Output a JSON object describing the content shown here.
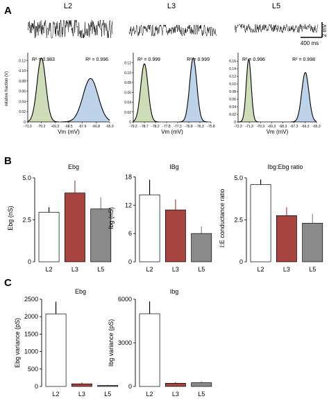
{
  "panel_labels": [
    "A",
    "B",
    "C"
  ],
  "colors": {
    "L2": "#ffffff",
    "L3": "#a84440",
    "L5": "#8a8a8a",
    "exc_fill": "#cfdcb8",
    "inh_fill": "#bcd3ea",
    "curve": "#000000"
  },
  "panel_a": {
    "scale_bar": {
      "voltage": "2 mV",
      "time": "400 ms"
    },
    "ylabel": "relative fraction (V)",
    "xlabel": "Vm (mV)",
    "histograms": [
      {
        "layer": "L2",
        "r2_left": "R² = 0.983",
        "r2_right": "R² = 0.996",
        "xticks": [
          "-71.0",
          "-70.2",
          "-69.3",
          "-68.5",
          "-67.6",
          "-66.8",
          "-65.9"
        ],
        "yticks": [
          "0",
          "0.02",
          "0.04",
          "0.06",
          "0.08",
          "0.10",
          "0.12"
        ],
        "ymax": 0.13,
        "peaks": [
          {
            "x": 1.0,
            "h": 0.125,
            "w": 0.32
          },
          {
            "x": 4.6,
            "h": 0.085,
            "w": 0.55
          }
        ]
      },
      {
        "layer": "L3",
        "r2_left": "R² = 0.999",
        "r2_right": "R² = 0.999",
        "xticks": [
          "-79.2",
          "-78.7",
          "-78.2",
          "-77.8",
          "-77.3",
          "-76.8",
          "-76.3",
          "-75.8"
        ],
        "yticks": [
          "0",
          "0.02",
          "0.04",
          "0.06",
          "0.08",
          "0.10",
          "0.12"
        ],
        "ymax": 0.135,
        "peaks": [
          {
            "x": 1.0,
            "h": 0.118,
            "w": 0.33
          },
          {
            "x": 5.4,
            "h": 0.13,
            "w": 0.32
          }
        ]
      },
      {
        "layer": "L5",
        "r2_left": "R² = 0.996",
        "r2_right": "R² = 0.998",
        "xticks": [
          "-72.3",
          "-71.3",
          "-70.3",
          "-69.3",
          "-68.3",
          "-67.3",
          "-66.3",
          "-65.3"
        ],
        "yticks": [
          "0",
          "0.02",
          "0.04",
          "0.06",
          "0.08",
          "0.10",
          "0.12",
          "0.14",
          "0.16"
        ],
        "ymax": 0.175,
        "peaks": [
          {
            "x": 0.95,
            "h": 0.165,
            "w": 0.22
          },
          {
            "x": 6.0,
            "h": 0.13,
            "w": 0.32
          }
        ]
      }
    ]
  },
  "chart_data": [
    {
      "type": "bar",
      "panel": "B",
      "title": "Ebg",
      "ylabel": "Ebg (nS)",
      "categories": [
        "L2",
        "L3",
        "L5"
      ],
      "values": [
        2.95,
        4.1,
        3.15
      ],
      "errors": [
        0.3,
        0.75,
        0.7
      ],
      "yticks": [
        0,
        2.5,
        5.0
      ],
      "ytick_labels": [
        "0",
        "2.5",
        "5.0"
      ],
      "ylim": [
        0,
        5.2
      ]
    },
    {
      "type": "bar",
      "panel": "B",
      "title": "IBg",
      "ylabel": "Ibg (nS)",
      "categories": [
        "L2",
        "L3",
        "L5"
      ],
      "values": [
        14.2,
        11.0,
        6.0
      ],
      "errors": [
        3.2,
        2.2,
        1.5
      ],
      "yticks": [
        0,
        6,
        12,
        18
      ],
      "ytick_labels": [
        "0",
        "6",
        "12",
        "18"
      ],
      "ylim": [
        0,
        18.5
      ]
    },
    {
      "type": "bar",
      "panel": "B",
      "title": "Ibg:Ebg ratio",
      "ylabel": "I:E conductance ratio",
      "categories": [
        "L2",
        "L3",
        "L5"
      ],
      "values": [
        4.6,
        2.75,
        2.3
      ],
      "errors": [
        0.3,
        0.5,
        0.55
      ],
      "yticks": [
        0,
        2.5,
        5.0
      ],
      "ytick_labels": [
        "0",
        "2.5",
        "5.0"
      ],
      "ylim": [
        0,
        5.2
      ]
    },
    {
      "type": "bar",
      "panel": "C",
      "title": "Ebg",
      "ylabel": "Ebg variance (pS)",
      "categories": [
        "L2",
        "L3",
        "L5"
      ],
      "values": [
        2080,
        75,
        30
      ],
      "errors": [
        350,
        40,
        15
      ],
      "yticks": [
        0,
        500,
        1000,
        1500,
        2000,
        2500
      ],
      "ytick_labels": [
        "0",
        "500",
        "1000",
        "1500",
        "2000",
        "2500"
      ],
      "ylim": [
        0,
        2500
      ]
    },
    {
      "type": "bar",
      "panel": "C",
      "title": "Ibg",
      "ylabel": "Ibg variance (pS)",
      "categories": [
        "L2",
        "L3",
        "L5"
      ],
      "values": [
        5000,
        220,
        260
      ],
      "errors": [
        850,
        80,
        90
      ],
      "yticks": [
        0,
        3000,
        6000
      ],
      "ytick_labels": [
        "0",
        "3000",
        "6000"
      ],
      "ylim": [
        0,
        6000
      ]
    }
  ]
}
